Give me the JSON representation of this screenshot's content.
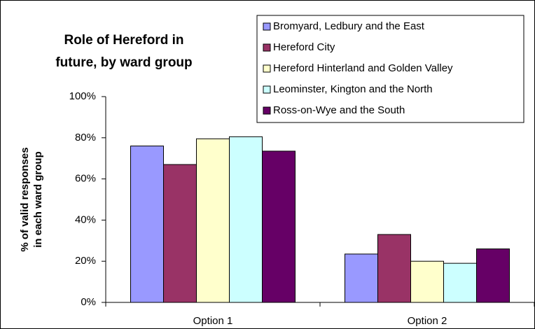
{
  "chart_data": {
    "type": "bar",
    "title": [
      "Role of Hereford in",
      "future, by ward group"
    ],
    "y_label": [
      "% of valid responses",
      "in each ward group"
    ],
    "categories": [
      "Option 1",
      "Option 2"
    ],
    "series": [
      {
        "name": "Bromyard, Ledbury and the East",
        "color": "#9999ff",
        "values": [
          76,
          23.5
        ]
      },
      {
        "name": "Hereford City",
        "color": "#993366",
        "values": [
          67,
          33
        ]
      },
      {
        "name": "Hereford Hinterland and Golden Valley",
        "color": "#ffffcc",
        "values": [
          79.5,
          20
        ]
      },
      {
        "name": "Leominster, Kington and the North",
        "color": "#ccffff",
        "values": [
          80.5,
          19
        ]
      },
      {
        "name": "Ross-on-Wye and the South",
        "color": "#660066",
        "values": [
          73.5,
          26
        ]
      }
    ],
    "ylim": [
      0,
      100
    ],
    "yticks": [
      {
        "value": 0,
        "label": "0%"
      },
      {
        "value": 20,
        "label": "20%"
      },
      {
        "value": 40,
        "label": "40%"
      },
      {
        "value": 60,
        "label": "60%"
      },
      {
        "value": 80,
        "label": "80%"
      },
      {
        "value": 100,
        "label": "100%"
      }
    ],
    "grid": false,
    "legend": "top-right"
  }
}
